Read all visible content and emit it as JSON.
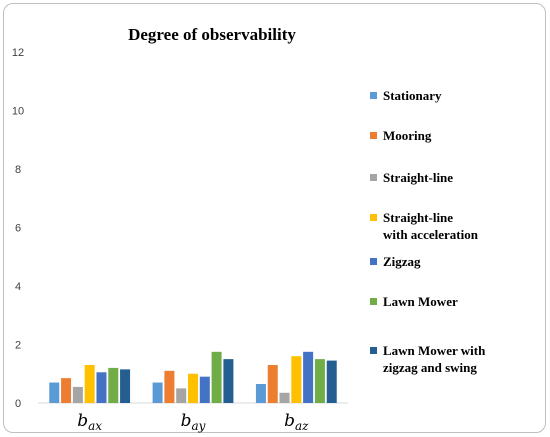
{
  "chart_data": {
    "type": "bar",
    "title": "Degree of observability",
    "xlabel": "",
    "ylabel": "",
    "ylim": [
      0,
      12
    ],
    "yticks": [
      0,
      2,
      4,
      6,
      8,
      10,
      12
    ],
    "grid": false,
    "legend_position": "right",
    "categories": [
      {
        "base": "b",
        "sub": "ax"
      },
      {
        "base": "b",
        "sub": "ay"
      },
      {
        "base": "b",
        "sub": "az"
      }
    ],
    "series": [
      {
        "name": "Stationary",
        "color": "#5B9BD5",
        "values": [
          0.7,
          0.7,
          0.65
        ]
      },
      {
        "name": "Mooring",
        "color": "#ED7D31",
        "values": [
          0.85,
          1.1,
          1.3
        ]
      },
      {
        "name": "Straight-line",
        "color": "#A5A5A5",
        "values": [
          0.55,
          0.5,
          0.35
        ]
      },
      {
        "name": [
          "Straight-line",
          "with acceleration"
        ],
        "color": "#FFC000",
        "values": [
          1.3,
          1.0,
          1.6
        ]
      },
      {
        "name": " Zigzag",
        "color": "#4472C4",
        "values": [
          1.05,
          0.9,
          1.75
        ]
      },
      {
        "name": "Lawn Mower",
        "color": "#70AD47",
        "values": [
          1.2,
          1.75,
          1.5
        ]
      },
      {
        "name": [
          "Lawn Mower with",
          "zigzag and swing"
        ],
        "color": "#255E91",
        "values": [
          1.15,
          1.5,
          1.45
        ]
      }
    ]
  }
}
